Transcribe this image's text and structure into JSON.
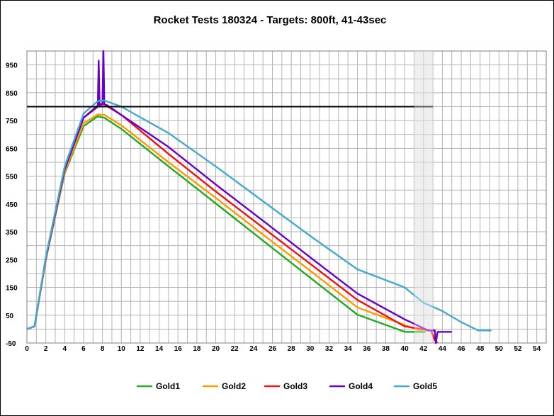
{
  "chart_data": {
    "type": "line",
    "title": "Rocket Tests 180324 - Targets: 800ft, 41-43sec",
    "xlabel": "",
    "ylabel": "",
    "xlim": [
      0,
      55
    ],
    "ylim": [
      -50,
      1000
    ],
    "x_ticks": [
      0,
      2,
      4,
      6,
      8,
      10,
      12,
      14,
      16,
      18,
      20,
      22,
      24,
      26,
      28,
      30,
      32,
      34,
      36,
      38,
      40,
      42,
      44,
      46,
      48,
      50,
      52,
      54
    ],
    "y_ticks": [
      -50,
      50,
      150,
      250,
      350,
      450,
      550,
      650,
      750,
      850,
      950
    ],
    "grid": true,
    "legend_position": "bottom",
    "target_line": {
      "y": 800,
      "x_range": [
        0,
        43
      ]
    },
    "target_window": {
      "x_range": [
        41,
        43
      ]
    },
    "series": [
      {
        "name": "Gold1",
        "color": "#22aa22",
        "x": [
          0,
          0.8,
          2,
          4,
          6,
          7.5,
          8.2,
          10,
          15,
          20,
          25,
          30,
          35,
          39.6,
          40.1,
          42,
          42.2
        ],
        "y": [
          0,
          10,
          250,
          560,
          730,
          765,
          760,
          720,
          585,
          452,
          318,
          185,
          52,
          -5,
          -10,
          -10,
          -10
        ]
      },
      {
        "name": "Gold2",
        "color": "#ff9900",
        "x": [
          0,
          0.8,
          2,
          4,
          6,
          7.5,
          8.2,
          10,
          15,
          20,
          25,
          30,
          35,
          40,
          41.5,
          42.8
        ],
        "y": [
          0,
          10,
          250,
          565,
          740,
          772,
          770,
          733,
          600,
          472,
          340,
          210,
          78,
          15,
          -5,
          -5
        ]
      },
      {
        "name": "Gold3",
        "color": "#ee1111",
        "x": [
          0,
          0.8,
          2,
          4,
          6,
          7.5,
          8.2,
          10,
          15,
          20,
          25,
          30,
          35,
          40,
          42.8,
          43.2,
          43.5
        ],
        "y": [
          0,
          10,
          255,
          575,
          760,
          805,
          808,
          770,
          630,
          495,
          365,
          235,
          105,
          10,
          -5,
          -40,
          -50
        ]
      },
      {
        "name": "Gold4",
        "color": "#6600cc",
        "x": [
          0,
          0.8,
          2,
          4,
          6,
          7.5,
          7.6,
          7.7,
          8.0,
          8.1,
          8.2,
          8.5,
          10,
          15,
          20,
          25,
          30,
          35,
          40,
          42.5,
          43.2,
          43.3,
          43.5,
          45
        ],
        "y": [
          0,
          10,
          255,
          575,
          760,
          800,
          965,
          805,
          812,
          1000,
          808,
          805,
          770,
          655,
          520,
          390,
          258,
          128,
          35,
          -5,
          -5,
          -50,
          -10,
          -10
        ]
      },
      {
        "name": "Gold5",
        "color": "#44aacc",
        "x": [
          0,
          0.8,
          2,
          4,
          6,
          7.5,
          8.2,
          10,
          15,
          20,
          25,
          30,
          35,
          40,
          42,
          44,
          46,
          47.8,
          48,
          49.2
        ],
        "y": [
          0,
          10,
          260,
          585,
          775,
          820,
          822,
          800,
          705,
          585,
          460,
          335,
          215,
          150,
          95,
          65,
          25,
          -5,
          -5,
          -5
        ]
      }
    ]
  }
}
